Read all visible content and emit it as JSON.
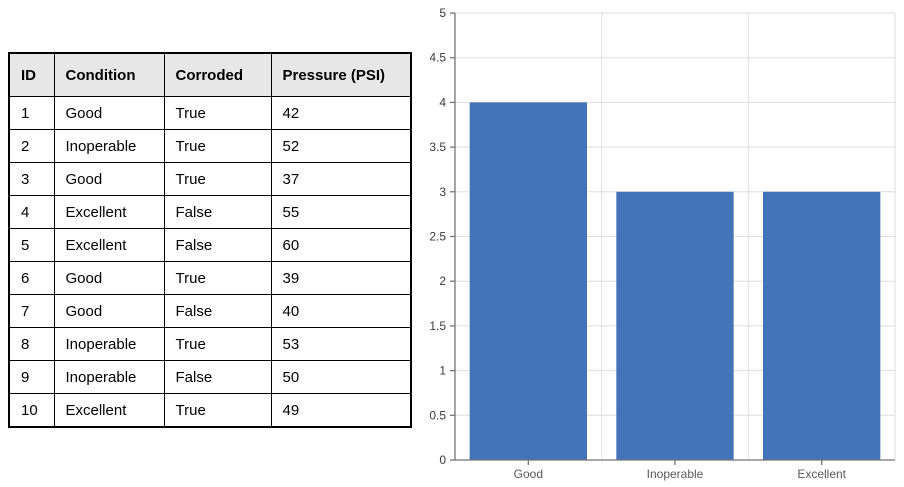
{
  "table": {
    "columns": [
      "ID",
      "Condition",
      "Corroded",
      "Pressure (PSI)"
    ],
    "rows": [
      [
        "1",
        "Good",
        "True",
        "42"
      ],
      [
        "2",
        "Inoperable",
        "True",
        "52"
      ],
      [
        "3",
        "Good",
        "True",
        "37"
      ],
      [
        "4",
        "Excellent",
        "False",
        "55"
      ],
      [
        "5",
        "Excellent",
        "False",
        "60"
      ],
      [
        "6",
        "Good",
        "True",
        "39"
      ],
      [
        "7",
        "Good",
        "False",
        "40"
      ],
      [
        "8",
        "Inoperable",
        "True",
        "53"
      ],
      [
        "9",
        "Inoperable",
        "False",
        "50"
      ],
      [
        "10",
        "Excellent",
        "True",
        "49"
      ]
    ],
    "header_bg": "#E7E7E7",
    "border_color": "#000000"
  },
  "chart_data": {
    "type": "bar",
    "title": "",
    "xlabel": "",
    "ylabel": "",
    "categories": [
      "Good",
      "Inoperable",
      "Excellent"
    ],
    "values": [
      4,
      3,
      3
    ],
    "ylim": [
      0,
      5
    ],
    "ytick_step": 0.5,
    "ytick_labels": [
      "0",
      "0.5",
      "1",
      "1.5",
      "2",
      "2.5",
      "3",
      "3.5",
      "4",
      "4.5",
      "5"
    ],
    "grid": true,
    "legend_position": "none",
    "bar_color": "#4374BA",
    "gridline_color": "#DEDEDE",
    "axis_color": "#757575",
    "ytick_label_color": "#3B3B3B",
    "xtick_label_color": "#595959"
  }
}
